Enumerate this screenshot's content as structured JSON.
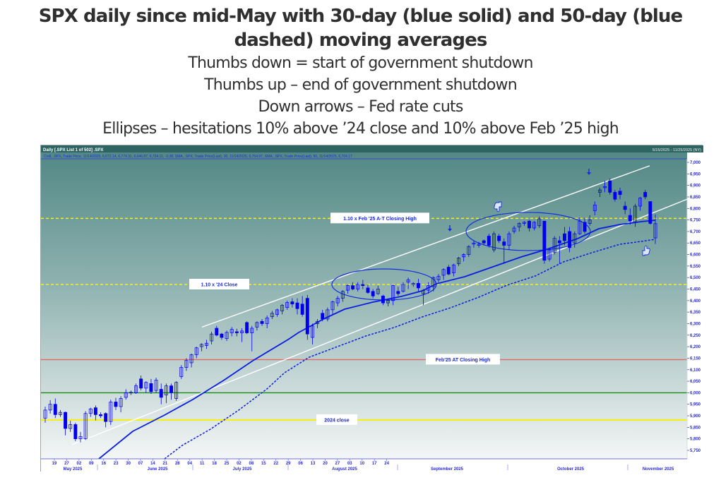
{
  "title": "SPX daily since mid-May with 30-day (blue solid) and 50-day (blue dashed) moving averages",
  "subtitles": [
    "Thumbs down = start of government shutdown",
    "Thumbs up – end of government shutdown",
    "Down arrows – Fed rate cuts",
    "Ellipses – hesitations 10% above ’24 close and 10% above Feb ’25 high"
  ],
  "chart_header": {
    "label": "Daily [.SPX List 1 of 502] .SPX",
    "legend": "Cndl, .SPX, Trade Price, 11/14/2025, 6,672.14, 6,774.31, 6,646.87, 6,734.11, -3.38, SMA, .SPX, Trade Price(Last), 30, 11/14/2025, 6,754.97, SMA, .SPX, Trade Price(Last), 50, 11/14/2025, 6,704.17",
    "change_value": "-3.38",
    "date_range": "5/15/2025 - 11/25/2025 (NY)"
  },
  "colors": {
    "bg_top": "#4f8683",
    "bg_bottom": "#f4f6f6",
    "candle": "#0000ee",
    "ma": "#0a1ee0",
    "axis_text": "#2a2ad8",
    "yellow": "#f5f01a",
    "red": "#e06a64",
    "green": "#178a17",
    "channel": "#ffffff"
  },
  "chart_data": {
    "type": "candlestick",
    "title": "SPX daily since mid-May with 30-day (blue solid) and 50-day (blue dashed) moving averages",
    "xlabel": "",
    "ylabel": "SPX",
    "ylim": [
      5725,
      7025
    ],
    "y_ticks": [
      "7,000",
      "6,950",
      "6,900",
      "6,850",
      "6,800",
      "6,750",
      "6,700",
      "6,650",
      "6,600",
      "6,550",
      "6,500",
      "6,450",
      "6,400",
      "6,350",
      "6,300",
      "6,250",
      "6,200",
      "6,150",
      "6,100",
      "6,050",
      "6,000",
      "5,950",
      "5,900",
      "5,850",
      "5,800",
      "5,750"
    ],
    "x_ticks": [
      "19",
      "27",
      "02",
      "09",
      "16",
      "23",
      "30",
      "07",
      "14",
      "21",
      "28",
      "04",
      "11",
      "18",
      "25",
      "02",
      "08",
      "15",
      "22",
      "29",
      "06",
      "13",
      "20",
      "27",
      "03",
      "10",
      "17",
      "24"
    ],
    "months": [
      "May 2025",
      "June 2025",
      "July 2025",
      "August 2025",
      "September 2025",
      "October 2025",
      "November 2025"
    ],
    "last_candle": {
      "date": "11/14/2025",
      "open": 6672.14,
      "high": 6774.31,
      "low": 6646.87,
      "close": 6734.11,
      "change": -3.38
    },
    "sma30_last": 6754.97,
    "sma50_last": 6704.17,
    "horizontal_lines": [
      {
        "label": "1.10 x Feb '25 A-T Closing High",
        "value": 6757,
        "color": "#f5f01a",
        "style": "dashed"
      },
      {
        "label": "1.10 x '24 Close",
        "value": 6470,
        "color": "#f5f01a",
        "style": "dashed"
      },
      {
        "label": "Feb'25 AT Closing High",
        "value": 6144,
        "color": "#e06a64",
        "style": "solid"
      },
      {
        "label": "",
        "value": 6000,
        "color": "#178a17",
        "style": "solid"
      },
      {
        "label": "2024 close",
        "value": 5882,
        "color": "#f5f01a",
        "style": "solid"
      }
    ],
    "annotations": [
      {
        "type": "thumbs-down",
        "label": "Start of government shutdown",
        "near": "Oct 1"
      },
      {
        "type": "thumbs-up",
        "label": "End of government shutdown",
        "near": "Nov 12"
      },
      {
        "type": "down-arrow",
        "label": "Fed rate cut",
        "near": "Sep 17"
      },
      {
        "type": "down-arrow",
        "label": "Fed rate cut",
        "near": "Oct 29"
      },
      {
        "type": "ellipse",
        "label": "Hesitation 10% above '24 close",
        "range": "Aug 8 – Sep 5"
      },
      {
        "type": "ellipse",
        "label": "Hesitation 10% above Feb '25 high",
        "range": "Sep 30 – Oct 24"
      }
    ],
    "candles": [
      [
        5890,
        5940,
        5870,
        5925
      ],
      [
        5925,
        5968,
        5910,
        5950
      ],
      [
        5950,
        5975,
        5890,
        5905
      ],
      [
        5905,
        5925,
        5895,
        5915
      ],
      [
        5915,
        5918,
        5815,
        5845
      ],
      [
        5845,
        5878,
        5830,
        5862
      ],
      [
        5862,
        5870,
        5790,
        5800
      ],
      [
        5800,
        5830,
        5785,
        5810
      ],
      [
        5800,
        5920,
        5795,
        5910
      ],
      [
        5910,
        5935,
        5895,
        5930
      ],
      [
        5935,
        5945,
        5880,
        5905
      ],
      [
        5905,
        5915,
        5890,
        5900
      ],
      [
        5910,
        5915,
        5850,
        5875
      ],
      [
        5875,
        5970,
        5860,
        5960
      ],
      [
        5960,
        5978,
        5925,
        5940
      ],
      [
        5940,
        5985,
        5915,
        5975
      ],
      [
        5980,
        6015,
        5970,
        6000
      ],
      [
        6000,
        6010,
        5990,
        6002
      ],
      [
        6000,
        6040,
        5995,
        6030
      ],
      [
        6060,
        6075,
        6010,
        6020
      ],
      [
        6020,
        6050,
        6000,
        6045
      ],
      [
        6040,
        6060,
        5995,
        6005
      ],
      [
        6010,
        6065,
        6000,
        6055
      ],
      [
        6015,
        6040,
        5950,
        5980
      ],
      [
        5990,
        6040,
        5955,
        6030
      ],
      [
        6030,
        6040,
        5970,
        6000
      ],
      [
        5975,
        6050,
        5965,
        6045
      ],
      [
        6070,
        6120,
        6060,
        6110
      ],
      [
        6110,
        6150,
        6095,
        6140
      ],
      [
        6130,
        6170,
        6110,
        6165
      ],
      [
        6165,
        6200,
        6150,
        6195
      ],
      [
        6200,
        6215,
        6180,
        6210
      ],
      [
        6205,
        6230,
        6190,
        6215
      ],
      [
        6225,
        6265,
        6210,
        6255
      ],
      [
        6280,
        6290,
        6245,
        6250
      ],
      [
        6255,
        6260,
        6230,
        6240
      ],
      [
        6235,
        6270,
        6225,
        6262
      ],
      [
        6260,
        6285,
        6245,
        6275
      ],
      [
        6265,
        6278,
        6245,
        6260
      ],
      [
        6260,
        6280,
        6220,
        6268
      ],
      [
        6305,
        6310,
        6255,
        6260
      ],
      [
        6260,
        6290,
        6180,
        6280
      ],
      [
        6285,
        6310,
        6270,
        6305
      ],
      [
        6310,
        6320,
        6290,
        6300
      ],
      [
        6300,
        6335,
        6280,
        6325
      ],
      [
        6330,
        6355,
        6320,
        6345
      ],
      [
        6340,
        6365,
        6330,
        6360
      ],
      [
        6355,
        6385,
        6340,
        6380
      ],
      [
        6370,
        6400,
        6360,
        6392
      ],
      [
        6395,
        6410,
        6370,
        6385
      ],
      [
        6390,
        6410,
        6340,
        6365
      ],
      [
        6385,
        6420,
        6330,
        6340
      ],
      [
        6410,
        6425,
        6230,
        6255
      ],
      [
        6240,
        6300,
        6210,
        6290
      ],
      [
        6300,
        6320,
        6280,
        6310
      ],
      [
        6345,
        6360,
        6310,
        6320
      ],
      [
        6320,
        6370,
        6310,
        6360
      ],
      [
        6360,
        6400,
        6340,
        6395
      ],
      [
        6390,
        6420,
        6375,
        6410
      ],
      [
        6410,
        6445,
        6395,
        6440
      ],
      [
        6445,
        6470,
        6430,
        6465
      ],
      [
        6465,
        6480,
        6445,
        6450
      ],
      [
        6450,
        6480,
        6440,
        6470
      ],
      [
        6470,
        6490,
        6450,
        6465
      ],
      [
        6455,
        6470,
        6430,
        6435
      ],
      [
        6440,
        6450,
        6410,
        6420
      ],
      [
        6430,
        6465,
        6425,
        6450
      ],
      [
        6420,
        6425,
        6380,
        6390
      ],
      [
        6390,
        6410,
        6375,
        6400
      ],
      [
        6400,
        6470,
        6380,
        6465
      ],
      [
        6440,
        6460,
        6420,
        6430
      ],
      [
        6440,
        6480,
        6435,
        6470
      ],
      [
        6480,
        6500,
        6450,
        6490
      ],
      [
        6470,
        6480,
        6460,
        6475
      ],
      [
        6475,
        6495,
        6440,
        6455
      ],
      [
        6430,
        6450,
        6380,
        6445
      ],
      [
        6445,
        6480,
        6430,
        6465
      ],
      [
        6460,
        6505,
        6440,
        6500
      ],
      [
        6490,
        6515,
        6480,
        6505
      ],
      [
        6510,
        6540,
        6490,
        6535
      ],
      [
        6545,
        6555,
        6510,
        6515
      ],
      [
        6520,
        6560,
        6505,
        6555
      ],
      [
        6560,
        6590,
        6550,
        6585
      ],
      [
        6590,
        6605,
        6570,
        6600
      ],
      [
        6600,
        6640,
        6590,
        6635
      ],
      [
        6645,
        6660,
        6630,
        6650
      ],
      [
        6640,
        6655,
        6630,
        6645
      ],
      [
        6660,
        6665,
        6640,
        6650
      ],
      [
        6680,
        6690,
        6630,
        6640
      ],
      [
        6620,
        6700,
        6610,
        6690
      ],
      [
        6680,
        6690,
        6650,
        6660
      ],
      [
        6655,
        6670,
        6560,
        6640
      ],
      [
        6640,
        6700,
        6620,
        6690
      ],
      [
        6700,
        6725,
        6690,
        6715
      ],
      [
        6720,
        6740,
        6700,
        6735
      ],
      [
        6735,
        6745,
        6725,
        6740
      ],
      [
        6745,
        6750,
        6700,
        6715
      ],
      [
        6715,
        6745,
        6705,
        6740
      ],
      [
        6725,
        6765,
        6715,
        6755
      ],
      [
        6745,
        6745,
        6560,
        6575
      ],
      [
        6580,
        6630,
        6570,
        6620
      ],
      [
        6610,
        6680,
        6600,
        6670
      ],
      [
        6660,
        6680,
        6560,
        6650
      ],
      [
        6690,
        6720,
        6640,
        6660
      ],
      [
        6700,
        6720,
        6610,
        6630
      ],
      [
        6650,
        6700,
        6630,
        6690
      ],
      [
        6690,
        6760,
        6685,
        6745
      ],
      [
        6740,
        6760,
        6690,
        6700
      ],
      [
        6735,
        6770,
        6725,
        6750
      ],
      [
        6790,
        6830,
        6770,
        6815
      ],
      [
        6870,
        6890,
        6850,
        6880
      ],
      [
        6890,
        6920,
        6870,
        6895
      ],
      [
        6920,
        6930,
        6860,
        6870
      ],
      [
        6870,
        6880,
        6830,
        6840
      ],
      [
        6875,
        6890,
        6840,
        6860
      ],
      [
        6810,
        6830,
        6775,
        6795
      ],
      [
        6770,
        6800,
        6730,
        6745
      ],
      [
        6740,
        6820,
        6720,
        6810
      ],
      [
        6810,
        6850,
        6790,
        6845
      ],
      [
        6870,
        6880,
        6840,
        6850
      ],
      [
        6830,
        6830,
        6730,
        6735
      ],
      [
        6672,
        6774,
        6646,
        6734
      ]
    ],
    "series": [
      {
        "name": "30-day SMA",
        "style": "solid",
        "end_value": 6754.97
      },
      {
        "name": "50-day SMA",
        "style": "dashed",
        "end_value": 6704.17
      }
    ]
  }
}
